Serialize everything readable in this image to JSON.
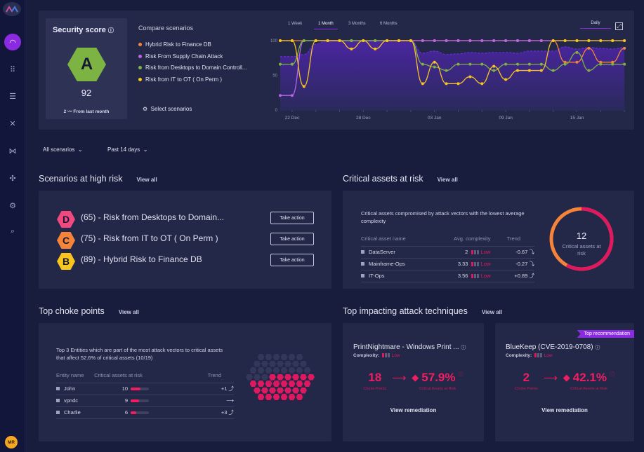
{
  "sidebar": {
    "avatar": "MR",
    "items": [
      "dashboard-icon",
      "grid-icon",
      "list-icon",
      "shuffle-icon",
      "attack-icon",
      "network-icon",
      "settings-icon",
      "search-list-icon"
    ]
  },
  "security": {
    "title": "Security score",
    "grade": "A",
    "score": "92",
    "change": "2",
    "change_label": "From last month",
    "color": "#7cb342"
  },
  "compare": {
    "title": "Compare scenarios",
    "select_label": "Select scenarios",
    "legend": [
      {
        "name": "Hybrid Risk to Finance DB",
        "color": "#f5843a"
      },
      {
        "name": "Risk From Supply Chain Attack",
        "color": "#b865e8"
      },
      {
        "name": "Risk from Desktops to Domain Controll...",
        "color": "#7cb342"
      },
      {
        "name": "Risk from IT to OT ( On Perm )",
        "color": "#f7c51e"
      }
    ],
    "tabs": [
      "1 Week",
      "1 Month",
      "3 Months",
      "6 Months"
    ],
    "active_tab": "1 Month",
    "granularity": "Daily"
  },
  "chart_data": {
    "type": "line",
    "x_start": "21 Dec",
    "x_end": "19 Jan",
    "xtick_labels": [
      "22 Dec",
      "28 Dec",
      "03 Jan",
      "09 Jan",
      "15 Jan"
    ],
    "ytick_labels": [
      "0",
      "50",
      "100"
    ],
    "ylim": [
      0,
      100
    ],
    "series": [
      {
        "name": "Hybrid Risk to Finance DB",
        "color": "#f5843a",
        "values": [
          100,
          100,
          100,
          100,
          100,
          100,
          100,
          100,
          100,
          100,
          100,
          100,
          100,
          100,
          100,
          100,
          100,
          100,
          100,
          100,
          100,
          100,
          100,
          100,
          69,
          69,
          89,
          69,
          69,
          89
        ]
      },
      {
        "name": "Risk From Supply Chain Attack",
        "color": "#b865e8",
        "values": [
          21,
          21,
          100,
          100,
          100,
          100,
          100,
          100,
          100,
          100,
          100,
          100,
          100,
          100,
          100,
          100,
          100,
          100,
          100,
          100,
          100,
          100,
          100,
          100,
          100,
          100,
          100,
          100,
          100,
          100
        ]
      },
      {
        "name": "Risk from Desktops to Domain Controll...",
        "color": "#7cb342",
        "values": [
          66,
          66,
          100,
          100,
          100,
          100,
          100,
          100,
          100,
          100,
          100,
          100,
          66,
          62,
          57,
          66,
          66,
          66,
          57,
          66,
          66,
          66,
          66,
          57,
          66,
          83,
          57,
          66,
          66,
          66
        ]
      },
      {
        "name": "Risk from IT to OT ( On Perm )",
        "color": "#f7c51e",
        "values": [
          100,
          100,
          34,
          100,
          100,
          100,
          88,
          100,
          88,
          100,
          100,
          100,
          38,
          69,
          38,
          38,
          48,
          38,
          63,
          44,
          57,
          57,
          57,
          100,
          100,
          100,
          100,
          100,
          100,
          100
        ]
      }
    ],
    "area": {
      "color": "#6a2bd9",
      "values": [
        77,
        77,
        80,
        95,
        100,
        100,
        100,
        100,
        100,
        100,
        100,
        100,
        82,
        85,
        80,
        81,
        83,
        82,
        83,
        83,
        82,
        85,
        85,
        85,
        91,
        88,
        90,
        89,
        88,
        90
      ]
    }
  },
  "filters": {
    "scenarios": "All scenarios",
    "period": "Past 14 days"
  },
  "high_risk": {
    "title": "Scenarios at high risk",
    "view_all": "View all",
    "action_label": "Take action",
    "items": [
      {
        "grade": "D",
        "text": "(65) - Risk from Desktops to Domain...",
        "color": "#f0487f"
      },
      {
        "grade": "C",
        "text": "(75) - Risk from IT to OT ( On Perm )",
        "color": "#f5843a"
      },
      {
        "grade": "B",
        "text": "(89) - Hybrid Risk to Finance DB",
        "color": "#f7c51e"
      }
    ]
  },
  "critical": {
    "title": "Critical assets at risk",
    "view_all": "View all",
    "desc": "Critical assets compromised by attack vectors with the lowest average complexity",
    "headers": [
      "Critical asset name",
      "Avg. complexity",
      "Trend"
    ],
    "rows": [
      {
        "name": "DataServer",
        "complexity": "2",
        "level": "Low",
        "trend": "-0.67"
      },
      {
        "name": "Mainframe-Ops",
        "complexity": "3.33",
        "level": "Low",
        "trend": "-0.27"
      },
      {
        "name": "IT-Ops",
        "complexity": "3.56",
        "level": "Low",
        "trend": "+0.89"
      }
    ],
    "total": "12",
    "total_label": "Critical assets at risk",
    "ring_fraction": 0.58
  },
  "choke": {
    "title": "Top choke points",
    "view_all": "View all",
    "desc": "Top 3 Entities which are part of the most attack vectors to critical assets that affect 52.6% of critical assets (10/19)",
    "headers": [
      "Entity name",
      "Critical assets at risk",
      "Trend"
    ],
    "rows": [
      {
        "name": "John",
        "value": "10",
        "fill": 0.55,
        "trend": "+1"
      },
      {
        "name": "vpndc",
        "value": "9",
        "fill": 0.48,
        "trend": ""
      },
      {
        "name": "Charlie",
        "value": "6",
        "fill": 0.3,
        "trend": "+3"
      }
    ],
    "percent_label": "52.6%",
    "percent": 52.6
  },
  "techniques": {
    "title": "Top impacting attack techniques",
    "view_all": "View all",
    "complexity_label": "Complexity:",
    "cards": [
      {
        "name": "PrintNightmare - Windows Print ...",
        "level": "Low",
        "choke": "18",
        "choke_label": "Choke Points",
        "pct": "57.9%",
        "pct_label": "Critical Assets at Risk",
        "action": "View remediation",
        "badge": ""
      },
      {
        "name": "BlueKeep (CVE-2019-0708)",
        "level": "Low",
        "choke": "2",
        "choke_label": "Choke Points",
        "pct": "42.1%",
        "pct_label": "Critical Assets at Risk",
        "action": "View remediation",
        "badge": "Top recommendation"
      }
    ]
  }
}
